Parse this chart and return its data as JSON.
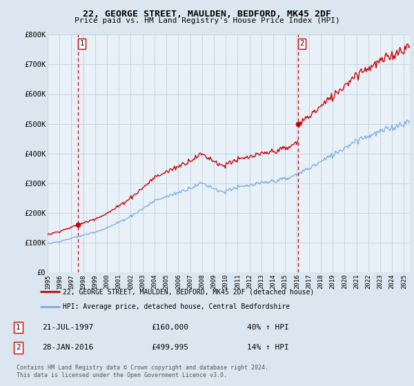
{
  "title": "22, GEORGE STREET, MAULDEN, BEDFORD, MK45 2DF",
  "subtitle": "Price paid vs. HM Land Registry's House Price Index (HPI)",
  "ylim": [
    0,
    800000
  ],
  "yticks": [
    0,
    100000,
    200000,
    300000,
    400000,
    500000,
    600000,
    700000,
    800000
  ],
  "ytick_labels": [
    "£0",
    "£100K",
    "£200K",
    "£300K",
    "£400K",
    "£500K",
    "£600K",
    "£700K",
    "£800K"
  ],
  "xlim_start": 1995.0,
  "xlim_end": 2025.5,
  "xtick_years": [
    1995,
    1996,
    1997,
    1998,
    1999,
    2000,
    2001,
    2002,
    2003,
    2004,
    2005,
    2006,
    2007,
    2008,
    2009,
    2010,
    2011,
    2012,
    2013,
    2014,
    2015,
    2016,
    2017,
    2018,
    2019,
    2020,
    2021,
    2022,
    2023,
    2024,
    2025
  ],
  "sale1_x": 1997.55,
  "sale1_y": 160000,
  "sale1_label": "1",
  "sale1_date": "21-JUL-1997",
  "sale1_price": "£160,000",
  "sale1_hpi": "40% ↑ HPI",
  "sale2_x": 2016.07,
  "sale2_y": 499995,
  "sale2_label": "2",
  "sale2_date": "28-JAN-2016",
  "sale2_price": "£499,995",
  "sale2_hpi": "14% ↑ HPI",
  "line_color_red": "#cc0000",
  "line_color_blue": "#7aaadd",
  "bg_color": "#dce6f0",
  "plot_bg": "#e8f0f8",
  "grid_color": "#c8d4e0",
  "footnote": "Contains HM Land Registry data © Crown copyright and database right 2024.\nThis data is licensed under the Open Government Licence v3.0.",
  "legend_label_red": "22, GEORGE STREET, MAULDEN, BEDFORD, MK45 2DF (detached house)",
  "legend_label_blue": "HPI: Average price, detached house, Central Bedfordshire"
}
